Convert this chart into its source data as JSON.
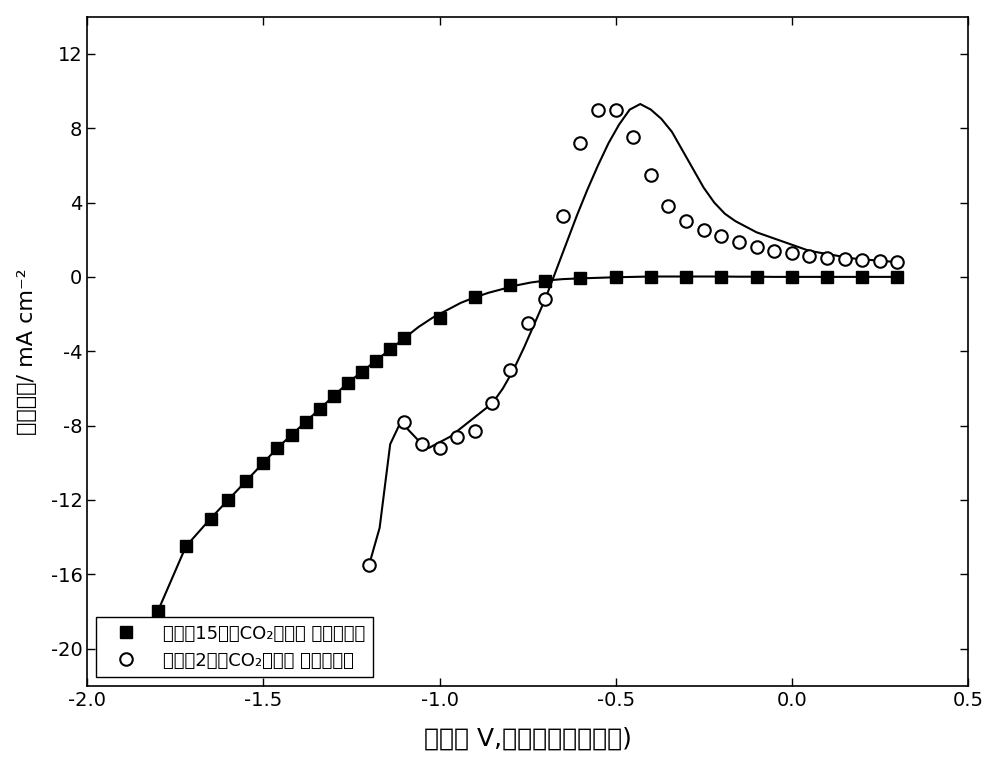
{
  "xlabel": "电位（ V,相对于标准氢电极)",
  "ylabel": "电流密度/ mA cm⁻²",
  "xlim": [
    -2.0,
    0.5
  ],
  "ylim": [
    -22,
    14
  ],
  "xticks": [
    -2.0,
    -1.5,
    -1.0,
    -0.5,
    0.0,
    0.5
  ],
  "yticks": [
    -20,
    -16,
    -12,
    -8,
    -4,
    0,
    4,
    8,
    12
  ],
  "background_color": "#ffffff",
  "line_color": "#000000",
  "legend1": "实施兖15中的CO₂电化学 还原催化剂",
  "legend2": "实施兦2中的CO₂电化学 还原催化剂",
  "series1_x": [
    -1.8,
    -1.72,
    -1.65,
    -1.6,
    -1.55,
    -1.5,
    -1.46,
    -1.42,
    -1.38,
    -1.34,
    -1.3,
    -1.26,
    -1.22,
    -1.18,
    -1.14,
    -1.1,
    -1.06,
    -1.02,
    -0.98,
    -0.94,
    -0.9,
    -0.86,
    -0.82,
    -0.78,
    -0.74,
    -0.7,
    -0.65,
    -0.6,
    -0.55,
    -0.5,
    -0.45,
    -0.4,
    -0.35,
    -0.3,
    -0.25,
    -0.2,
    -0.15,
    -0.1,
    -0.05,
    0.0,
    0.05,
    0.1,
    0.15,
    0.2,
    0.25,
    0.3
  ],
  "series1_y": [
    -18.0,
    -14.5,
    -13.0,
    -12.0,
    -11.0,
    -10.0,
    -9.2,
    -8.5,
    -7.8,
    -7.1,
    -6.4,
    -5.7,
    -5.1,
    -4.5,
    -3.9,
    -3.3,
    -2.7,
    -2.2,
    -1.8,
    -1.4,
    -1.1,
    -0.85,
    -0.65,
    -0.45,
    -0.3,
    -0.2,
    -0.12,
    -0.08,
    -0.05,
    -0.02,
    0.0,
    0.02,
    0.02,
    0.02,
    0.02,
    0.02,
    0.01,
    0.01,
    0.0,
    0.0,
    0.0,
    0.0,
    0.0,
    0.0,
    0.0,
    0.0
  ],
  "series2_x": [
    -1.2,
    -1.17,
    -1.14,
    -1.11,
    -1.09,
    -1.07,
    -1.05,
    -1.03,
    -1.01,
    -0.99,
    -0.97,
    -0.95,
    -0.93,
    -0.91,
    -0.89,
    -0.87,
    -0.85,
    -0.82,
    -0.79,
    -0.76,
    -0.73,
    -0.7,
    -0.67,
    -0.64,
    -0.61,
    -0.58,
    -0.55,
    -0.52,
    -0.49,
    -0.46,
    -0.43,
    -0.4,
    -0.37,
    -0.34,
    -0.31,
    -0.28,
    -0.25,
    -0.22,
    -0.19,
    -0.16,
    -0.13,
    -0.1,
    -0.07,
    -0.04,
    -0.01,
    0.02,
    0.05,
    0.08,
    0.11,
    0.14,
    0.17,
    0.2,
    0.23,
    0.26,
    0.3
  ],
  "series2_y": [
    -15.5,
    -13.5,
    -9.0,
    -7.8,
    -8.2,
    -8.6,
    -9.0,
    -9.2,
    -9.0,
    -8.8,
    -8.6,
    -8.3,
    -8.0,
    -7.7,
    -7.4,
    -7.1,
    -6.8,
    -6.0,
    -5.0,
    -3.8,
    -2.5,
    -1.2,
    0.3,
    1.8,
    3.3,
    4.7,
    6.0,
    7.2,
    8.2,
    9.0,
    9.3,
    9.0,
    8.5,
    7.8,
    6.8,
    5.8,
    4.8,
    4.0,
    3.4,
    3.0,
    2.7,
    2.4,
    2.2,
    2.0,
    1.8,
    1.6,
    1.4,
    1.3,
    1.2,
    1.1,
    1.0,
    0.95,
    0.9,
    0.85,
    0.8
  ],
  "marker1_x": [
    -1.8,
    -1.72,
    -1.65,
    -1.6,
    -1.55,
    -1.5,
    -1.46,
    -1.42,
    -1.38,
    -1.34,
    -1.3,
    -1.26,
    -1.22,
    -1.18,
    -1.14,
    -1.1,
    -1.0,
    -0.9,
    -0.8,
    -0.7,
    -0.6,
    -0.5,
    -0.4,
    -0.3,
    -0.2,
    -0.1,
    0.0,
    0.1,
    0.2,
    0.3
  ],
  "marker1_y": [
    -18.0,
    -14.5,
    -13.0,
    -12.0,
    -11.0,
    -10.0,
    -9.2,
    -8.5,
    -7.8,
    -7.1,
    -6.4,
    -5.7,
    -5.1,
    -4.5,
    -3.9,
    -3.3,
    -2.2,
    -1.1,
    -0.45,
    -0.2,
    -0.08,
    -0.02,
    0.02,
    0.02,
    0.02,
    0.01,
    0.0,
    0.0,
    0.0,
    0.0
  ],
  "marker2_x": [
    -1.2,
    -1.1,
    -1.05,
    -1.0,
    -0.95,
    -0.9,
    -0.85,
    -0.8,
    -0.75,
    -0.7,
    -0.65,
    -0.6,
    -0.55,
    -0.5,
    -0.45,
    -0.4,
    -0.35,
    -0.3,
    -0.25,
    -0.2,
    -0.15,
    -0.1,
    -0.05,
    0.0,
    0.05,
    0.1,
    0.15,
    0.2,
    0.25,
    0.3
  ],
  "marker2_y": [
    -15.5,
    -7.8,
    -9.0,
    -9.2,
    -8.6,
    -8.3,
    -6.8,
    -5.0,
    -2.5,
    -1.2,
    3.3,
    7.2,
    9.0,
    9.0,
    7.5,
    5.5,
    3.8,
    3.0,
    2.5,
    2.2,
    1.9,
    1.6,
    1.4,
    1.3,
    1.1,
    1.0,
    0.95,
    0.9,
    0.85,
    0.8
  ]
}
